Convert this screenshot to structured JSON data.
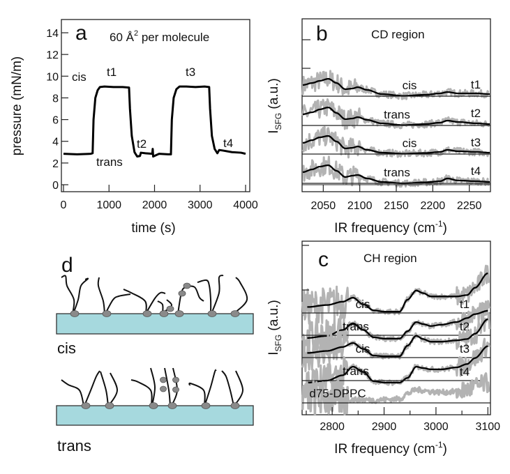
{
  "chart_data": [
    {
      "panel": "a",
      "type": "line",
      "annotation": "60 Å² per molecule",
      "xlabel": "time (s)",
      "ylabel": "pressure (mN/m)",
      "xlim": [
        0,
        4050
      ],
      "ylim": [
        -0.6,
        15.3
      ],
      "xticks": [
        "0",
        "1000",
        "2000",
        "3000",
        "4000"
      ],
      "yticks": [
        "0",
        "2",
        "4",
        "6",
        "8",
        "10",
        "12",
        "14"
      ],
      "labels": [
        "cis",
        "t1",
        "t2",
        "t3",
        "t4",
        "trans"
      ],
      "x": [
        0,
        300,
        600,
        640,
        660,
        700,
        750,
        800,
        900,
        1100,
        1300,
        1440,
        1460,
        1500,
        1560,
        1620,
        1680,
        1700,
        1800,
        1950,
        1960,
        1970,
        2100,
        2300,
        2360,
        2380,
        2420,
        2480,
        2550,
        2700,
        2900,
        3100,
        3200,
        3220,
        3260,
        3320,
        3380,
        3420,
        3500,
        3700,
        3900,
        4000
      ],
      "y": [
        2.85,
        2.8,
        2.85,
        2.9,
        6.0,
        8.0,
        8.7,
        9.0,
        9.05,
        9.0,
        9.0,
        8.95,
        7.0,
        4.5,
        3.0,
        2.6,
        2.65,
        2.95,
        2.9,
        2.85,
        3.3,
        2.6,
        2.85,
        2.8,
        2.8,
        6.0,
        8.0,
        8.8,
        9.05,
        9.05,
        9.0,
        9.05,
        9.0,
        7.0,
        4.5,
        3.3,
        2.9,
        3.2,
        3.15,
        3.0,
        2.95,
        2.85
      ]
    },
    {
      "panel": "b",
      "type": "line",
      "title": "CD region",
      "xlabel": "IR frequency (cm-1)",
      "ylabel": "ISFG (a.u.)",
      "xlim": [
        2021,
        2279
      ],
      "xticks": [
        "2050",
        "2100",
        "2150",
        "2200",
        "2250"
      ],
      "x": [
        2022,
        2035,
        2045,
        2057,
        2068,
        2080,
        2090,
        2097,
        2110,
        2130,
        2160,
        2190,
        2210,
        2220,
        2235,
        2260,
        2278
      ],
      "series": [
        {
          "name": "t1",
          "label": "cis",
          "values": [
            16,
            19,
            22,
            25,
            19,
            10,
            11,
            13,
            9,
            3,
            0.5,
            2,
            4,
            6,
            4,
            4,
            3
          ]
        },
        {
          "name": "t2",
          "label": "trans",
          "values": [
            16,
            19,
            23,
            26,
            18,
            9,
            10,
            12,
            8,
            3,
            0.5,
            2,
            4,
            7,
            5,
            3,
            2
          ]
        },
        {
          "name": "t3",
          "label": "cis",
          "values": [
            16,
            20,
            24,
            26,
            18,
            8,
            9,
            11,
            6,
            2,
            0.5,
            1.5,
            3,
            6,
            4,
            3,
            2
          ]
        },
        {
          "name": "t4",
          "label": "trans",
          "values": [
            16,
            20,
            24,
            26,
            18,
            9,
            11,
            12,
            7,
            2,
            0,
            1.5,
            3,
            7,
            4,
            3,
            2
          ]
        }
      ]
    },
    {
      "panel": "c",
      "type": "line",
      "title": "CH region",
      "xlabel": "IR frequency (cm-1)",
      "ylabel": "ISFG (a.u.)",
      "xlim": [
        2742,
        3105
      ],
      "xticks": [
        "2800",
        "2900",
        "3000",
        "3100"
      ],
      "x": [
        2752,
        2790,
        2820,
        2840,
        2860,
        2880,
        2900,
        2930,
        2945,
        2962,
        2975,
        2990,
        3010,
        3040,
        3060,
        3075,
        3100
      ],
      "series": [
        {
          "name": "t1",
          "label": "cis",
          "values": [
            9,
            12,
            17,
            23,
            13,
            4,
            2,
            2,
            20,
            34,
            30,
            25,
            25,
            25,
            27,
            38,
            60
          ]
        },
        {
          "name": "t2",
          "label": "trans",
          "values": [
            -4,
            -1,
            8,
            18,
            8,
            -3,
            -5,
            -5,
            6,
            20,
            17,
            14,
            16,
            20,
            26,
            32,
            37
          ]
        },
        {
          "name": "t3",
          "label": "cis",
          "values": [
            7,
            10,
            16,
            22,
            13,
            3,
            2,
            2,
            18,
            33,
            28,
            24,
            24,
            26,
            28,
            36,
            58
          ]
        },
        {
          "name": "t4",
          "label": "trans",
          "values": [
            -3,
            0,
            8,
            21,
            13,
            -1,
            -3,
            -3,
            4,
            21,
            19,
            17,
            17,
            20,
            25,
            34,
            52
          ]
        },
        {
          "name": "d75-DPPC",
          "label": "d75-DPPC",
          "values": [
            8,
            6,
            6,
            5,
            5,
            4,
            5,
            6,
            14,
            20,
            19,
            17,
            16,
            17,
            20,
            24,
            30
          ]
        }
      ]
    }
  ],
  "panel_d": {
    "label": "d",
    "cis_label": "cis",
    "trans_label": "trans",
    "substrate_color": "#a6d9de",
    "headgroup_color": "#8a8a8a"
  },
  "panel_letters": {
    "a": "a",
    "b": "b",
    "c": "c"
  },
  "colors": {
    "fit": "#000000",
    "data": "#b3b3b3"
  }
}
